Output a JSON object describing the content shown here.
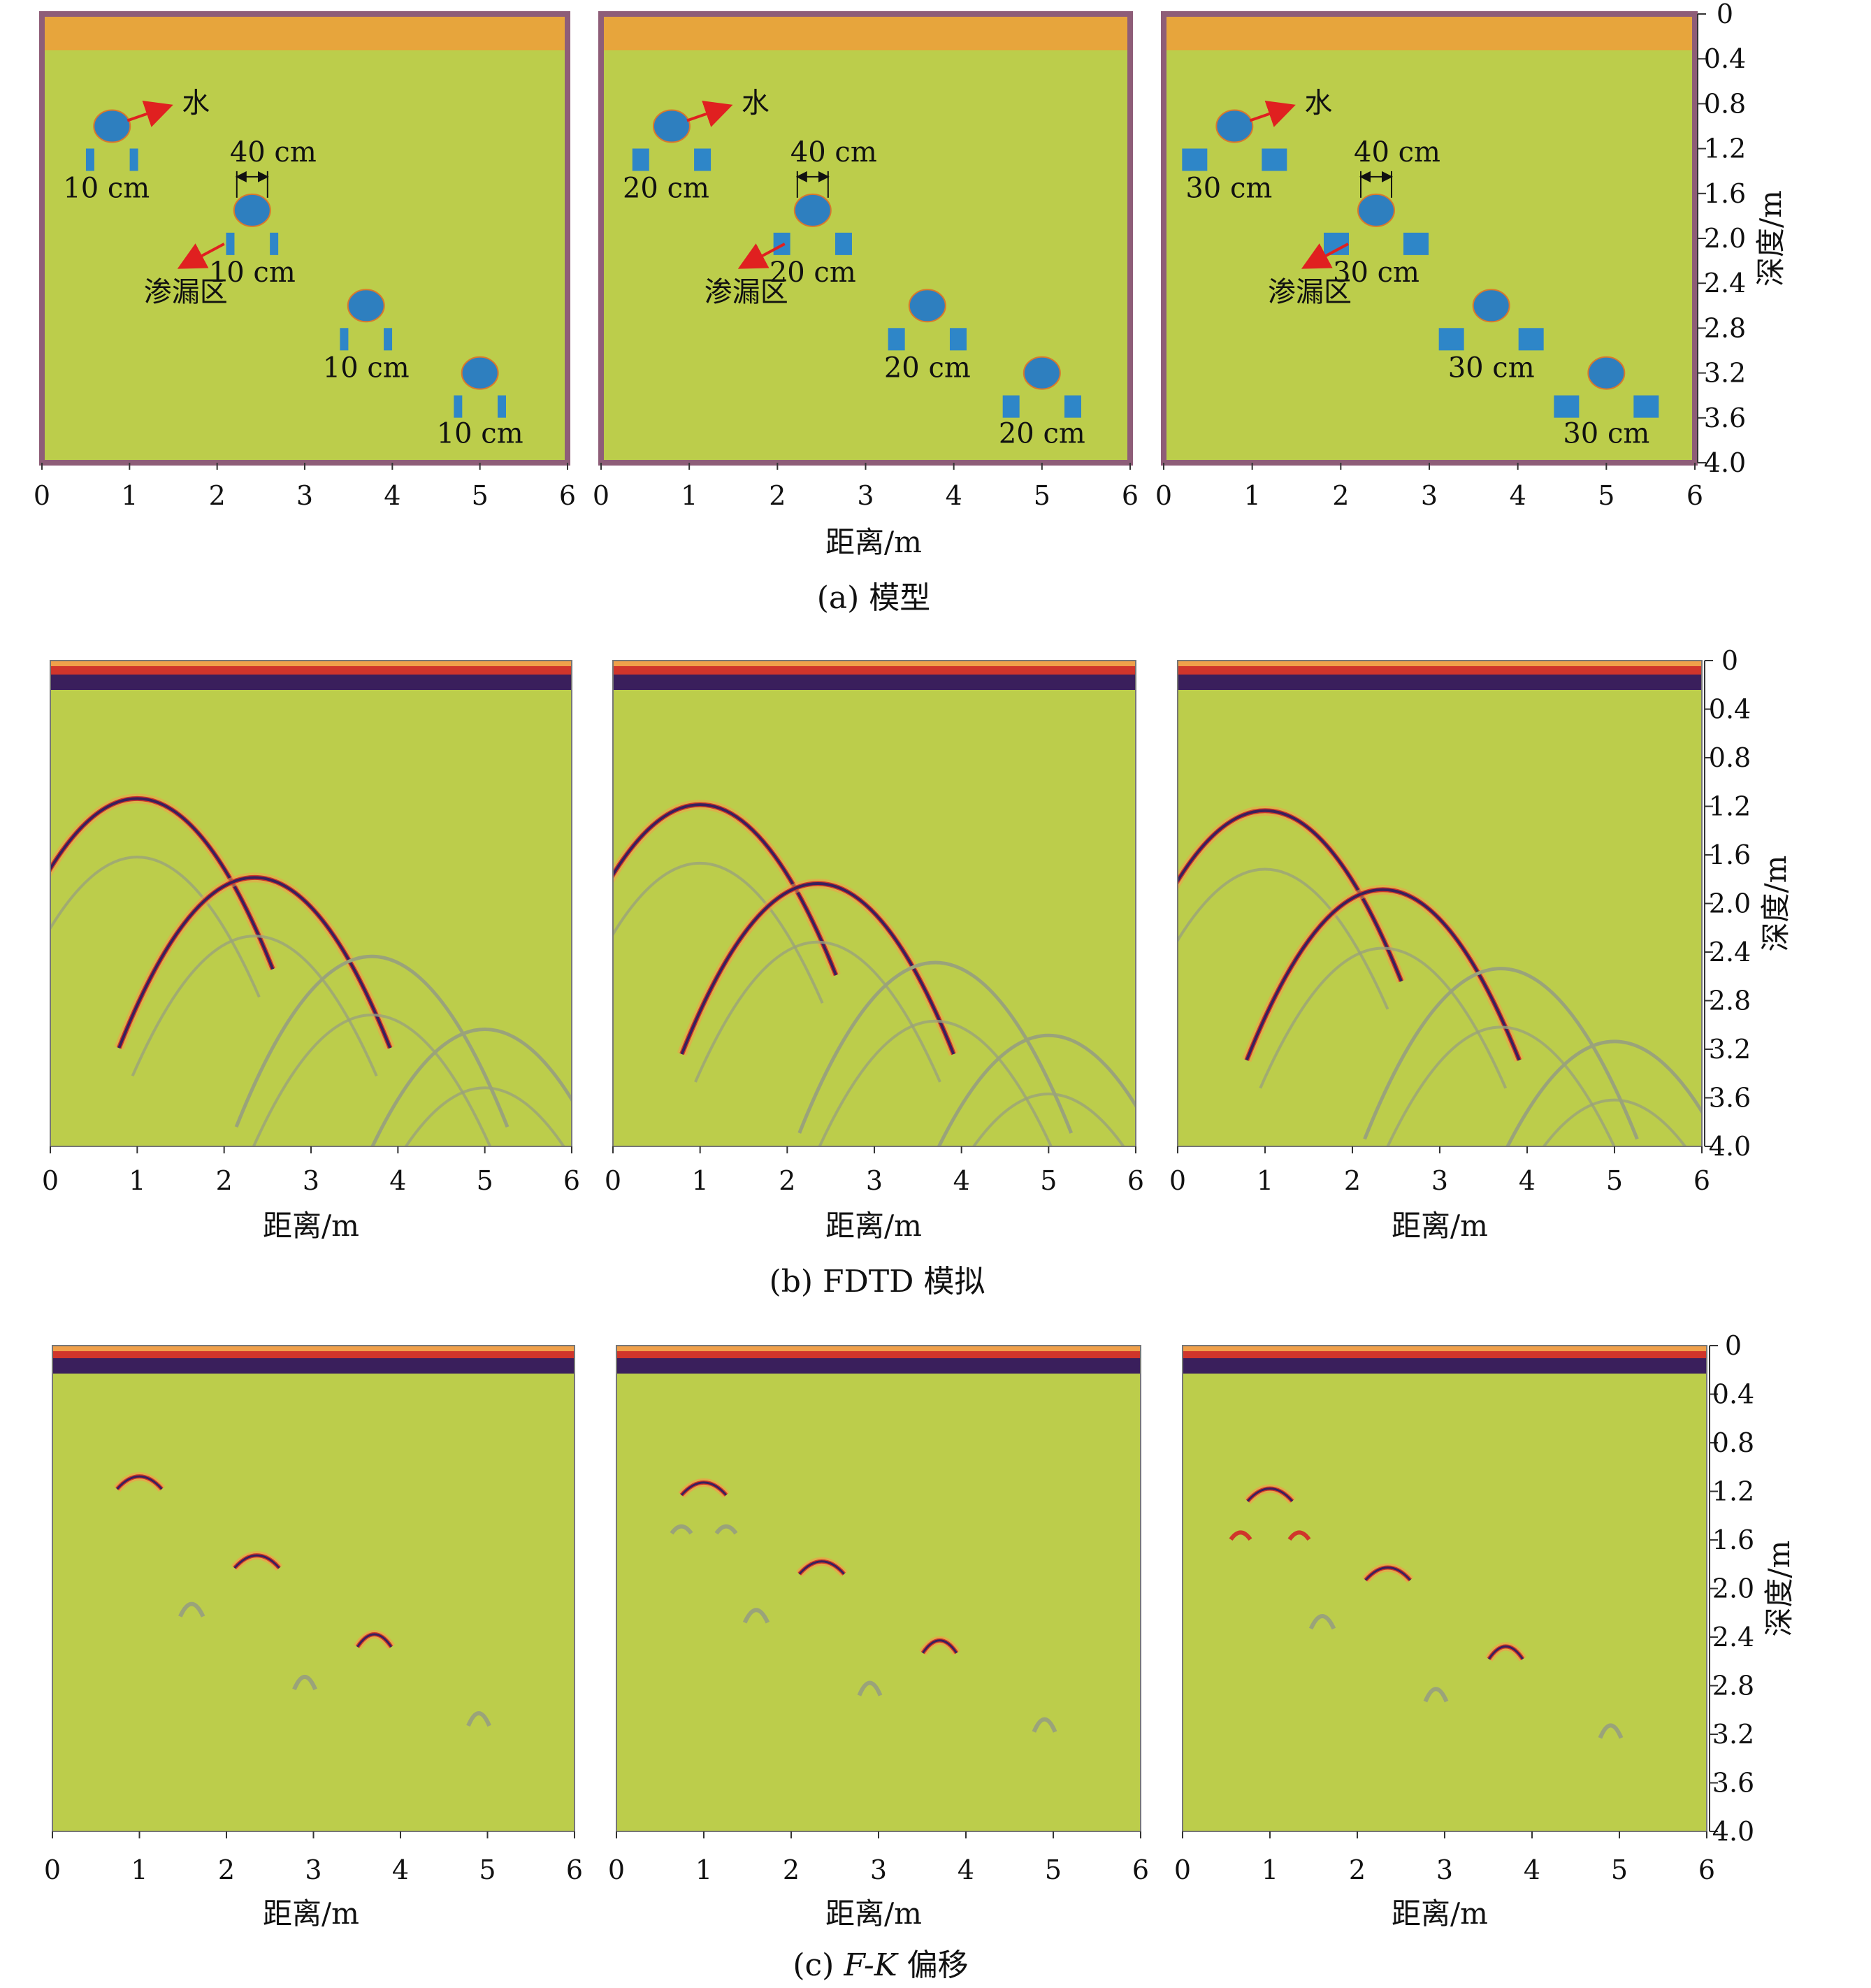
{
  "x_axis": {
    "label": "距离/m",
    "ticks": [
      "0",
      "1",
      "2",
      "3",
      "4",
      "5",
      "6"
    ]
  },
  "y_axis": {
    "label": "深度/m",
    "ticks": [
      "0",
      "0.4",
      "0.8",
      "1.2",
      "1.6",
      "2.0",
      "2.4",
      "2.8",
      "3.2",
      "3.6",
      "4.0"
    ]
  },
  "captions": {
    "a": "(a) 模型",
    "b": "(b) FDTD 模拟",
    "c_prefix": "(c) ",
    "c_italic": "F-K",
    "c_suffix": " 偏移"
  },
  "annotations": {
    "water": "水",
    "gap": "40 cm",
    "leak": "渗漏区"
  },
  "models": [
    {
      "spacing_label": "10 cm",
      "spacing_m": 0.1
    },
    {
      "spacing_label": "20 cm",
      "spacing_m": 0.2
    },
    {
      "spacing_label": "30 cm",
      "spacing_m": 0.3
    }
  ],
  "colors": {
    "background_medium": "#bccd4b",
    "surface_layer": "#e7a53c",
    "border": "#8e5d78",
    "water_circle": "#2e7fbf",
    "leak_block": "#2e86c8",
    "arrow": "#e02020",
    "reflection_dark": "#3a1f5c",
    "reflection_red": "#d0352b",
    "reflection_orange": "#f0a04a",
    "faint_curve": "#9aa37a"
  },
  "chart_data": [
    {
      "type": "heatmap",
      "panel": "a",
      "description_source": "model geometry",
      "xlim": [
        0,
        6
      ],
      "ylim": [
        0,
        4
      ],
      "targets": [
        {
          "x": 0.8,
          "y": 1.0
        },
        {
          "x": 2.4,
          "y": 1.75
        },
        {
          "x": 3.7,
          "y": 2.6
        },
        {
          "x": 5.0,
          "y": 3.2
        }
      ]
    },
    {
      "type": "heatmap",
      "panel": "b",
      "xlim": [
        0,
        6
      ],
      "ylim": [
        0,
        4
      ]
    },
    {
      "type": "heatmap",
      "panel": "c",
      "xlim": [
        0,
        6
      ],
      "ylim": [
        0,
        4
      ]
    }
  ]
}
